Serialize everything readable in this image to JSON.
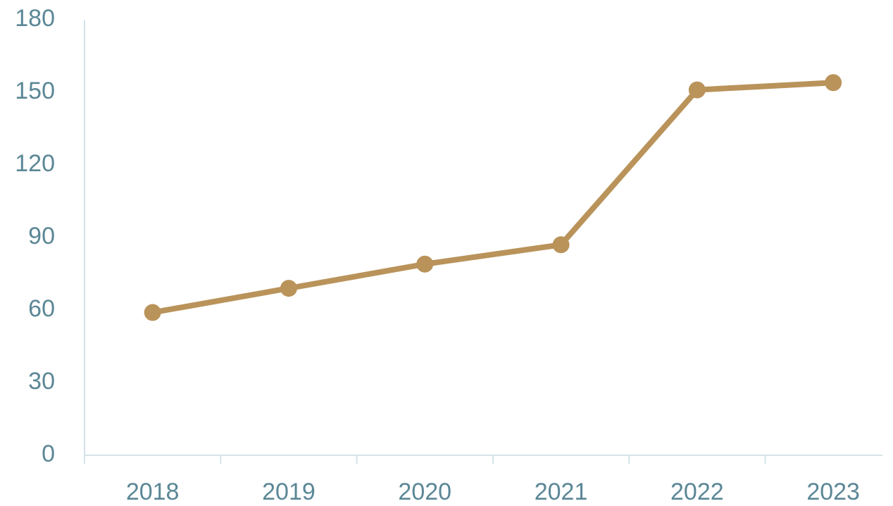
{
  "chart_data": {
    "type": "line",
    "categories": [
      "2018",
      "2019",
      "2020",
      "2021",
      "2022",
      "2023"
    ],
    "series": [
      {
        "color": "#b9935a",
        "values": [
          59,
          69,
          79,
          87,
          151,
          154
        ]
      }
    ],
    "ylim": [
      0,
      180
    ],
    "yticks": [
      0,
      30,
      60,
      90,
      120,
      150,
      180
    ],
    "grid": false
  }
}
